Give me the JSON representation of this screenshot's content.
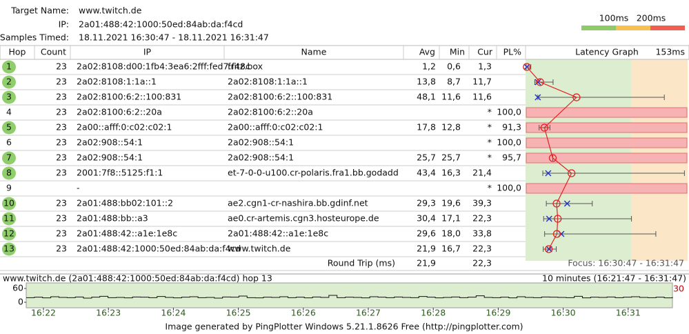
{
  "header": {
    "target_label": "Target Name:",
    "target": "www.twitch.de",
    "ip_label": "IP:",
    "ip": "2a01:488:42:1000:50ed:84ab:da:f4cd",
    "samples_label": "Samples Timed:",
    "samples": "18.11.2021 16:30:47 - 18.11.2021 16:31:47"
  },
  "legend": {
    "labels": [
      "100ms",
      "200ms"
    ],
    "colors": [
      "#8fca68",
      "#f8c050",
      "#f06050"
    ]
  },
  "table": {
    "columns": [
      "Hop",
      "Count",
      "IP",
      "Name",
      "Avg",
      "Min",
      "Cur",
      "PL%",
      "Latency Graph"
    ],
    "graph_max_label": "153ms",
    "xlim": [
      0,
      153
    ],
    "zones": [
      100
    ],
    "rows": [
      {
        "hop": 1,
        "count": 23,
        "ip": "2a02:8108:d00:1fb4:3ea6:2fff:fed7:f48c",
        "name": "fritz.box",
        "avg": {
          "value": 1.2,
          "label": "1,2"
        },
        "min": {
          "value": 0.6,
          "label": "0,6"
        },
        "cur": {
          "value": 1.3,
          "label": "1,3"
        },
        "pl": null,
        "max": 5
      },
      {
        "hop": 2,
        "count": 23,
        "ip": "2a02:8108:1:1a::1",
        "name": "2a02:8108:1:1a::1",
        "avg": {
          "value": 13.8,
          "label": "13,8"
        },
        "min": {
          "value": 8.7,
          "label": "8,7"
        },
        "cur": {
          "value": 11.7,
          "label": "11,7"
        },
        "pl": null,
        "max": 26
      },
      {
        "hop": 3,
        "count": 23,
        "ip": "2a02:8100:6:2::100:831",
        "name": "2a02:8100:6:2::100:831",
        "avg": {
          "value": 48.1,
          "label": "48,1"
        },
        "min": {
          "value": 11.6,
          "label": "11,6"
        },
        "cur": {
          "value": 11.6,
          "label": "11,6"
        },
        "pl": null,
        "max": 131
      },
      {
        "hop": 4,
        "count": 23,
        "ip": "2a02:8100:6:2::20a",
        "name": "2a02:8100:6:2::20a",
        "avg": null,
        "min": null,
        "cur": "*",
        "pl": {
          "value": 100,
          "label": "100,0"
        },
        "max": null
      },
      {
        "hop": 5,
        "count": 23,
        "ip": "2a00::afff:0:c02:c02:1",
        "name": "2a00::afff:0:c02:c02:1",
        "avg": {
          "value": 17.8,
          "label": "17,8"
        },
        "min": {
          "value": 12.8,
          "label": "12,8"
        },
        "cur": "*",
        "pl": {
          "value": 91.3,
          "label": "91,3"
        },
        "max": 23
      },
      {
        "hop": 6,
        "count": 23,
        "ip": "2a02:908::54:1",
        "name": "2a02:908::54:1",
        "avg": null,
        "min": null,
        "cur": "*",
        "pl": {
          "value": 100,
          "label": "100,0"
        },
        "max": null
      },
      {
        "hop": 7,
        "count": 23,
        "ip": "2a02:908::54:1",
        "name": "2a02:908::54:1",
        "avg": {
          "value": 25.7,
          "label": "25,7"
        },
        "min": {
          "value": 25.7,
          "label": "25,7"
        },
        "cur": "*",
        "pl": {
          "value": 95.7,
          "label": "95,7"
        },
        "max": 25.7
      },
      {
        "hop": 8,
        "count": 23,
        "ip": "2001:7f8::5125:f1:1",
        "name": "et-7-0-0-u100.cr-polaris.fra1.bb.godadd",
        "avg": {
          "value": 43.4,
          "label": "43,4"
        },
        "min": {
          "value": 16.3,
          "label": "16,3"
        },
        "cur": {
          "value": 21.4,
          "label": "21,4"
        },
        "pl": null,
        "max": 150
      },
      {
        "hop": 9,
        "count": null,
        "ip": "-",
        "name": null,
        "avg": null,
        "min": null,
        "cur": "*",
        "pl": {
          "value": 100,
          "label": "100,0"
        },
        "max": null
      },
      {
        "hop": 10,
        "count": 23,
        "ip": "2a01:488:bb02:101::2",
        "name": "ae2.cgn1-cr-nashira.bb.gdinf.net",
        "avg": {
          "value": 29.3,
          "label": "29,3"
        },
        "min": {
          "value": 19.6,
          "label": "19,6"
        },
        "cur": {
          "value": 39.3,
          "label": "39,3"
        },
        "pl": null,
        "max": 63
      },
      {
        "hop": 11,
        "count": 23,
        "ip": "2a01:488:bb::a3",
        "name": "ae0.cr-artemis.cgn3.hosteurope.de",
        "avg": {
          "value": 30.4,
          "label": "30,4"
        },
        "min": {
          "value": 17.1,
          "label": "17,1"
        },
        "cur": {
          "value": 22.3,
          "label": "22,3"
        },
        "pl": null,
        "max": 100
      },
      {
        "hop": 12,
        "count": 23,
        "ip": "2a01:488:42::a1e:1e8c",
        "name": "2a01:488:42::a1e:1e8c",
        "avg": {
          "value": 29.6,
          "label": "29,6"
        },
        "min": {
          "value": 18.0,
          "label": "18,0"
        },
        "cur": {
          "value": 33.8,
          "label": "33,8"
        },
        "pl": null,
        "max": 123
      },
      {
        "hop": 13,
        "count": 23,
        "ip": "2a01:488:42:1000:50ed:84ab:da:f4cd",
        "name": "www.twitch.de",
        "avg": {
          "value": 21.9,
          "label": "21,9"
        },
        "min": {
          "value": 16.7,
          "label": "16,7"
        },
        "cur": {
          "value": 22.3,
          "label": "22,3"
        },
        "pl": null,
        "max": 29
      }
    ],
    "round_trip": {
      "label": "Round Trip (ms)",
      "avg": "21,9",
      "cur": "22,3"
    },
    "focus": "Focus: 16:30:47 - 16:31:47"
  },
  "timeline": {
    "title": "www.twitch.de (2a01:488:42:1000:50ed:84ab:da:f4cd) hop 13",
    "range": "10 minutes (16:21:47 - 16:31:47)",
    "marker": "30",
    "ylim": [
      0,
      60
    ],
    "yticks": [
      60,
      0
    ],
    "xticks": [
      "16:22",
      "16:23",
      "16:24",
      "16:25",
      "16:26",
      "16:27",
      "16:28",
      "16:29",
      "16:30",
      "16:31"
    ],
    "values": [
      20,
      22,
      19,
      24,
      21,
      20,
      23,
      18,
      22,
      26,
      20,
      21,
      19,
      23,
      22,
      20,
      25,
      21,
      19,
      22,
      24,
      20,
      21,
      18,
      23,
      22,
      27,
      20,
      19,
      22,
      21,
      24,
      20,
      22,
      19,
      23,
      21,
      30,
      20,
      22,
      21,
      19,
      24,
      22,
      20,
      23,
      21,
      20,
      25,
      22,
      19,
      21,
      23,
      20,
      22,
      28,
      21,
      20,
      22,
      19,
      24,
      21,
      20,
      23,
      22,
      21,
      20,
      26,
      19,
      22,
      21,
      23,
      20,
      22,
      24,
      21,
      20,
      22,
      19,
      23
    ]
  },
  "footer": "Image generated by PingPlotter Windows 5.21.1.8626 Free (http://pingplotter.com)"
}
